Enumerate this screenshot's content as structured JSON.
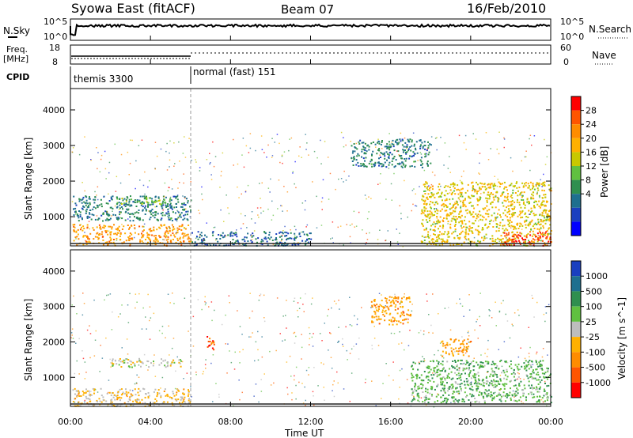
{
  "header": {
    "station": "Syowa East (fitACF)",
    "beam": "Beam 07",
    "date": "16/Feb/2010"
  },
  "top_panel": {
    "left_label": "N.Sky",
    "right_label": "N.Search",
    "left_ticks": [
      "10^5",
      "10^0"
    ],
    "right_ticks": [
      "10^5",
      "10^0"
    ]
  },
  "freq_panel": {
    "left_label_1": "Freq.",
    "left_label_2": "[MHz]",
    "right_label": "Nave",
    "left_ticks": [
      "18",
      "8"
    ],
    "right_ticks": [
      "60",
      "0"
    ]
  },
  "cpid_panel": {
    "label": "CPID",
    "modes": [
      "themis 3300",
      "normal (fast) 151"
    ]
  },
  "range_axis": {
    "label": "Slant Range [km]",
    "ticks": [
      "4000",
      "3000",
      "2000",
      "1000"
    ]
  },
  "time_axis": {
    "label": "Time UT",
    "ticks": [
      "00:00",
      "04:00",
      "08:00",
      "12:00",
      "16:00",
      "20:00",
      "00:00"
    ]
  },
  "power_scale": {
    "label": "Power [dB]",
    "ticks": [
      "28",
      "24",
      "20",
      "16",
      "12",
      "8",
      "4"
    ],
    "colors": [
      "#ff0000",
      "#ff5500",
      "#ff8c00",
      "#ffb000",
      "#c8c800",
      "#60c040",
      "#2f8f4f",
      "#1e6f8f",
      "#1a3fbf",
      "#0000ff"
    ]
  },
  "velocity_scale": {
    "label": "Velocity [m s^-1]",
    "ticks": [
      "1000",
      "500",
      "100",
      "25",
      "-25",
      "-100",
      "-500",
      "-1000"
    ],
    "colors": [
      "#1a3fbf",
      "#1e6f8f",
      "#2f8f4f",
      "#60c040",
      "#bdbdbd",
      "#ffb000",
      "#ff8c00",
      "#ff5500",
      "#ff0000"
    ]
  },
  "chart_data": [
    {
      "type": "heatmap",
      "title": "Power",
      "xlabel": "Time UT",
      "ylabel": "Slant Range [km]",
      "xlim": [
        0,
        24
      ],
      "ylim": [
        180,
        4600
      ],
      "colorbar_label": "Power [dB]",
      "colorbar_range": [
        0,
        30
      ],
      "regions": [
        {
          "t0": 0.1,
          "t1": 6.0,
          "r0": 200,
          "r1": 800,
          "value": 22
        },
        {
          "t0": 0.1,
          "t1": 6.0,
          "r0": 900,
          "r1": 1600,
          "value": 8
        },
        {
          "t0": 2.3,
          "t1": 5.0,
          "r0": 1350,
          "r1": 1550,
          "value": 14
        },
        {
          "t0": 6.0,
          "t1": 12.0,
          "r0": 200,
          "r1": 600,
          "value": 6
        },
        {
          "t0": 14.0,
          "t1": 18.0,
          "r0": 2400,
          "r1": 3200,
          "value": 8
        },
        {
          "t0": 17.5,
          "t1": 24.0,
          "r0": 200,
          "r1": 2000,
          "value": 18
        },
        {
          "t0": 21.5,
          "t1": 24.0,
          "r0": 200,
          "r1": 600,
          "value": 28
        }
      ]
    },
    {
      "type": "heatmap",
      "title": "Velocity",
      "xlabel": "Time UT",
      "ylabel": "Slant Range [km]",
      "xlim": [
        0,
        24
      ],
      "ylim": [
        180,
        4600
      ],
      "colorbar_label": "Velocity [m s^-1]",
      "colorbar_range": [
        -1000,
        1000
      ],
      "regions": [
        {
          "t0": 0.1,
          "t1": 6.0,
          "r0": 200,
          "r1": 700,
          "value": -150
        },
        {
          "t0": 2.0,
          "t1": 5.5,
          "r0": 1300,
          "r1": 1550,
          "value": 0
        },
        {
          "t0": 6.8,
          "t1": 7.2,
          "r0": 1800,
          "r1": 2300,
          "value": -800
        },
        {
          "t0": 15.0,
          "t1": 17.0,
          "r0": 2500,
          "r1": 3300,
          "value": -400
        },
        {
          "t0": 17.0,
          "t1": 24.0,
          "r0": 300,
          "r1": 1500,
          "value": 300
        },
        {
          "t0": 18.5,
          "t1": 20.0,
          "r0": 1600,
          "r1": 2100,
          "value": -400
        }
      ]
    }
  ]
}
